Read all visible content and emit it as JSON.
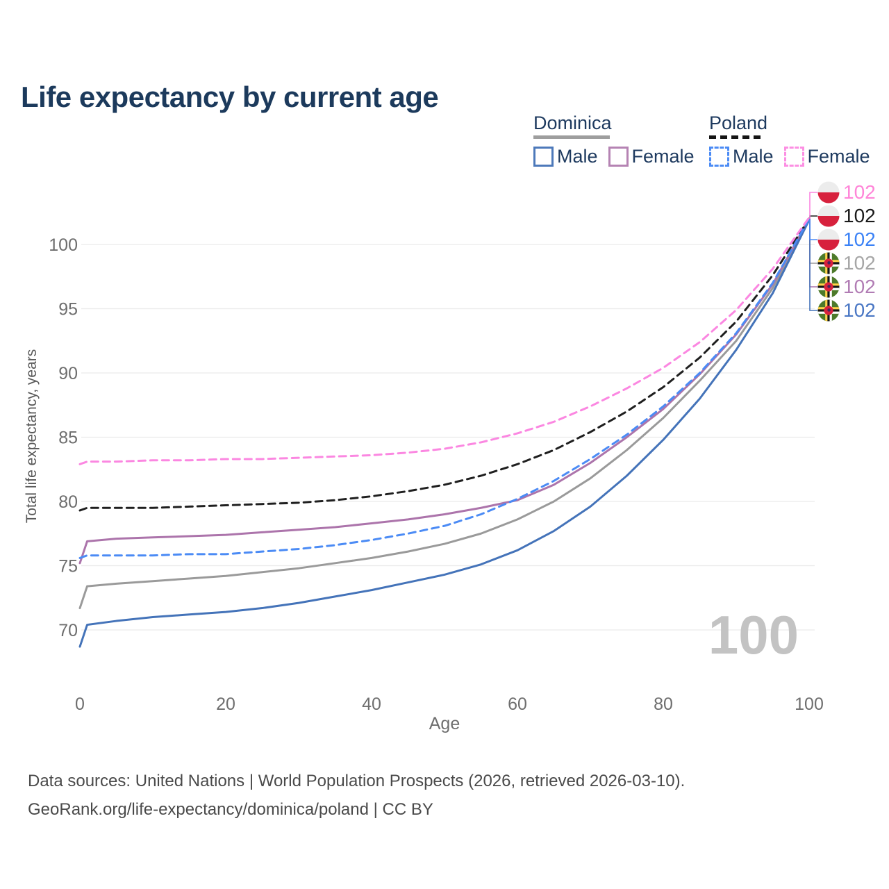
{
  "title": "Life expectancy by current age",
  "watermark": "100",
  "legend": {
    "groups": [
      {
        "country": "Dominica",
        "line_style": "solid",
        "underline_color": "#9e9e9e",
        "items": [
          {
            "label": "Male",
            "color": "#4d79ba",
            "dashed": false
          },
          {
            "label": "Female",
            "color": "#b583b3",
            "dashed": false
          }
        ]
      },
      {
        "country": "Poland",
        "line_style": "dashed",
        "underline_color": "#151515",
        "items": [
          {
            "label": "Male",
            "color": "#4b8bf5",
            "dashed": true
          },
          {
            "label": "Female",
            "color": "#fc8fe3",
            "dashed": true
          }
        ]
      }
    ]
  },
  "footer": {
    "line1": "Data sources: United Nations | World Population Prospects (2026, retrieved 2026-03-10).",
    "line2": "GeoRank.org/life-expectancy/dominica/poland | CC BY"
  },
  "chart_data": {
    "type": "line",
    "title": "Life expectancy by current age",
    "xlabel": "Age",
    "ylabel": "Total life expectancy, years",
    "xlim": [
      0,
      100
    ],
    "ylim": [
      67,
      103
    ],
    "xticks": [
      0,
      20,
      40,
      60,
      80,
      100
    ],
    "yticks": [
      70,
      75,
      80,
      85,
      90,
      95,
      100
    ],
    "grid": "horizontal",
    "legend_position": "top-right",
    "x": [
      0,
      1,
      5,
      10,
      15,
      20,
      25,
      30,
      35,
      40,
      45,
      50,
      55,
      60,
      65,
      70,
      75,
      80,
      85,
      90,
      95,
      100
    ],
    "series": [
      {
        "name": "Dominica — All",
        "country": "Dominica",
        "sex": "All",
        "color": "#9a9a9a",
        "dashed": false,
        "flag": "dominica",
        "label_row": 3,
        "end_label": "102",
        "label_color": "#a6a6a6",
        "values": [
          71.7,
          73.4,
          73.6,
          73.8,
          74.0,
          74.2,
          74.5,
          74.8,
          75.2,
          75.6,
          76.1,
          76.7,
          77.5,
          78.6,
          80.0,
          81.8,
          84.0,
          86.5,
          89.4,
          92.5,
          96.6,
          101.9
        ]
      },
      {
        "name": "Dominica — Female",
        "country": "Dominica",
        "sex": "Female",
        "color": "#ac74ab",
        "dashed": false,
        "flag": "dominica",
        "label_row": 4,
        "end_label": "102",
        "label_color": "#b17cb4",
        "values": [
          75.2,
          76.9,
          77.1,
          77.2,
          77.3,
          77.4,
          77.6,
          77.8,
          78.0,
          78.3,
          78.6,
          79.0,
          79.5,
          80.1,
          81.3,
          83.0,
          85.0,
          87.2,
          89.9,
          93.0,
          96.9,
          102.0
        ]
      },
      {
        "name": "Dominica — Male",
        "country": "Dominica",
        "sex": "Male",
        "color": "#4473b9",
        "dashed": false,
        "flag": "dominica",
        "label_row": 5,
        "end_label": "102",
        "label_color": "#4a77c4",
        "values": [
          68.7,
          70.4,
          70.7,
          71.0,
          71.2,
          71.4,
          71.7,
          72.1,
          72.6,
          73.1,
          73.7,
          74.3,
          75.1,
          76.2,
          77.7,
          79.6,
          82.0,
          84.8,
          88.0,
          91.8,
          96.2,
          101.9
        ]
      },
      {
        "name": "Poland — All",
        "country": "Poland",
        "sex": "All",
        "color": "#1f1f1f",
        "dashed": true,
        "flag": "poland",
        "label_row": 1,
        "end_label": "102",
        "label_color": "#1a1a1a",
        "values": [
          79.3,
          79.5,
          79.5,
          79.5,
          79.6,
          79.7,
          79.8,
          79.9,
          80.1,
          80.4,
          80.8,
          81.3,
          82.0,
          82.9,
          84.0,
          85.4,
          87.0,
          88.9,
          91.2,
          94.0,
          97.6,
          102.0
        ]
      },
      {
        "name": "Poland — Male",
        "country": "Poland",
        "sex": "Male",
        "color": "#4b8bf5",
        "dashed": true,
        "flag": "poland",
        "label_row": 2,
        "end_label": "102",
        "label_color": "#3b82f6",
        "values": [
          75.6,
          75.8,
          75.8,
          75.8,
          75.9,
          75.9,
          76.1,
          76.3,
          76.6,
          77.0,
          77.5,
          78.1,
          79.0,
          80.2,
          81.6,
          83.3,
          85.2,
          87.4,
          90.0,
          93.1,
          97.0,
          102.0
        ]
      },
      {
        "name": "Poland — Female",
        "country": "Poland",
        "sex": "Female",
        "color": "#fb87e1",
        "dashed": true,
        "flag": "poland",
        "label_row": 0,
        "end_label": "102",
        "label_color": "#ff85d8",
        "values": [
          82.9,
          83.1,
          83.1,
          83.2,
          83.2,
          83.3,
          83.3,
          83.4,
          83.5,
          83.6,
          83.8,
          84.1,
          84.6,
          85.3,
          86.2,
          87.4,
          88.8,
          90.4,
          92.4,
          94.9,
          98.1,
          102.1
        ]
      }
    ]
  }
}
